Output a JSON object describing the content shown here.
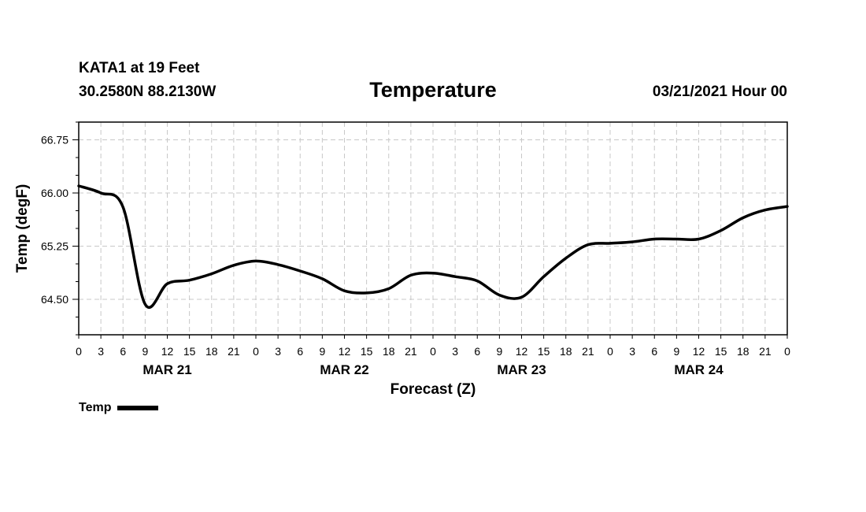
{
  "header": {
    "station": "KATA1 at 19 Feet",
    "coords": "30.2580N 88.2130W",
    "title": "Temperature",
    "run": "03/21/2021 Hour 00"
  },
  "chart_data": {
    "type": "line",
    "title": "Temperature",
    "xlabel": "Forecast (Z)",
    "ylabel": "Temp (degF)",
    "ylim": [
      64.0,
      67.0
    ],
    "yticks": [
      64.5,
      65.25,
      66.0,
      66.75
    ],
    "ytick_labels": [
      "64.50",
      "65.25",
      "66.00",
      "66.75"
    ],
    "xlim": [
      0,
      96
    ],
    "xticks": [
      0,
      3,
      6,
      9,
      12,
      15,
      18,
      21,
      24,
      27,
      30,
      33,
      36,
      39,
      42,
      45,
      48,
      51,
      54,
      57,
      60,
      63,
      66,
      69,
      72,
      75,
      78,
      81,
      84,
      87,
      90,
      93,
      96
    ],
    "xtick_labels": [
      "0",
      "3",
      "6",
      "9",
      "12",
      "15",
      "18",
      "21",
      "0",
      "3",
      "6",
      "9",
      "12",
      "15",
      "18",
      "21",
      "0",
      "3",
      "6",
      "9",
      "12",
      "15",
      "18",
      "21",
      "0",
      "3",
      "6",
      "9",
      "12",
      "15",
      "18",
      "21",
      "0"
    ],
    "date_labels": [
      {
        "label": "MAR 21",
        "x": 12
      },
      {
        "label": "MAR 22",
        "x": 36
      },
      {
        "label": "MAR 23",
        "x": 60
      },
      {
        "label": "MAR 24",
        "x": 84
      }
    ],
    "grid": true,
    "legend_position": "bottom-left",
    "series": [
      {
        "name": "Temp",
        "color": "#000000",
        "x": [
          0,
          3,
          6,
          9,
          12,
          15,
          18,
          21,
          24,
          27,
          30,
          33,
          36,
          39,
          42,
          45,
          48,
          51,
          54,
          57,
          60,
          63,
          66,
          69,
          72,
          75,
          78,
          81,
          84,
          87,
          90,
          93,
          96
        ],
        "values": [
          66.1,
          66.0,
          65.8,
          64.43,
          64.72,
          64.77,
          64.86,
          64.98,
          65.04,
          64.99,
          64.9,
          64.79,
          64.62,
          64.59,
          64.65,
          64.84,
          64.87,
          64.82,
          64.76,
          64.56,
          64.53,
          64.82,
          65.08,
          65.27,
          65.29,
          65.31,
          65.35,
          65.35,
          65.35,
          65.47,
          65.65,
          65.76,
          65.81
        ]
      }
    ]
  }
}
